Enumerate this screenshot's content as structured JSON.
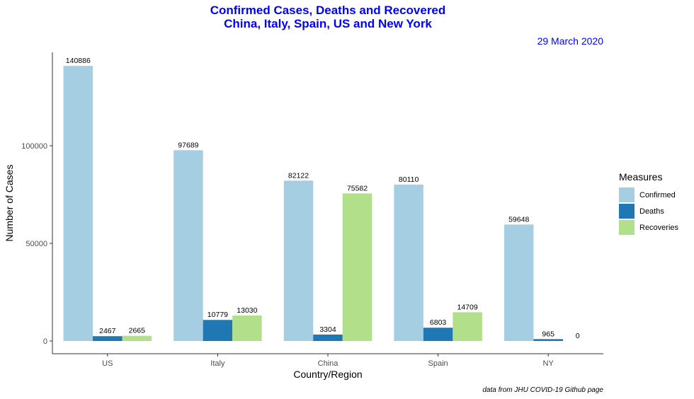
{
  "chart_data": {
    "type": "bar",
    "title_line1": "Confirmed Cases, Deaths and Recovered",
    "title_line2": "China, Italy, Spain, US and New York",
    "subtitle": "29 March 2020",
    "xlabel": "Country/Region",
    "ylabel": "Number of Cases",
    "caption": "data from JHU COVID-19 Github page",
    "categories": [
      "US",
      "Italy",
      "China",
      "Spain",
      "NY"
    ],
    "series": [
      {
        "name": "Confirmed",
        "color": "#a6cee3",
        "values": [
          140886,
          97689,
          82122,
          80110,
          59648
        ]
      },
      {
        "name": "Deaths",
        "color": "#1f78b4",
        "values": [
          2467,
          10779,
          3304,
          6803,
          965
        ]
      },
      {
        "name": "Recoveries",
        "color": "#b2df8a",
        "values": [
          2665,
          13030,
          75582,
          14709,
          0
        ]
      }
    ],
    "ylim": [
      0,
      150000
    ],
    "yticks": [
      0,
      50000,
      100000
    ],
    "legend_title": "Measures",
    "legend_position": "right",
    "grid": false
  }
}
